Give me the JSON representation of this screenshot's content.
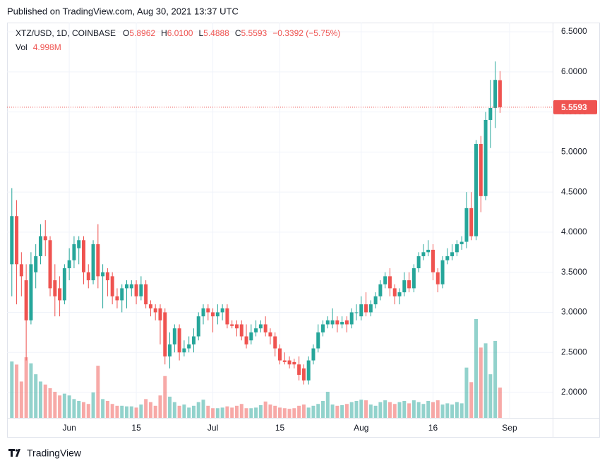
{
  "header": "Published on TradingView.com, Aug 30, 2021 13:37 UTC",
  "footer": "TradingView",
  "chart_data": {
    "type": "candlestick",
    "title": "XTZ/USD, 1D, COINBASE",
    "quote": [
      {
        "name": "O",
        "value": 5.8962
      },
      {
        "name": "H",
        "value": 6.01,
        "label": "6.0100"
      },
      {
        "name": "L",
        "value": 5.4888
      },
      {
        "name": "C",
        "value": 5.5593
      }
    ],
    "change": {
      "value": -0.3392,
      "label": "−0.3392 (−5.75%)"
    },
    "volume_name": "Vol",
    "volume_label": "4.998M",
    "up_color": "#26a69a",
    "down_color": "#ef5350",
    "x": [
      "2021-05-20",
      "2021-05-21",
      "2021-05-22",
      "2021-05-23",
      "2021-05-24",
      "2021-05-25",
      "2021-05-26",
      "2021-05-27",
      "2021-05-28",
      "2021-05-29",
      "2021-05-30",
      "2021-05-31",
      "2021-06-01",
      "2021-06-02",
      "2021-06-03",
      "2021-06-04",
      "2021-06-05",
      "2021-06-06",
      "2021-06-07",
      "2021-06-08",
      "2021-06-09",
      "2021-06-10",
      "2021-06-11",
      "2021-06-12",
      "2021-06-13",
      "2021-06-14",
      "2021-06-15",
      "2021-06-16",
      "2021-06-17",
      "2021-06-18",
      "2021-06-19",
      "2021-06-20",
      "2021-06-21",
      "2021-06-22",
      "2021-06-23",
      "2021-06-24",
      "2021-06-25",
      "2021-06-26",
      "2021-06-27",
      "2021-06-28",
      "2021-06-29",
      "2021-06-30",
      "2021-07-01",
      "2021-07-02",
      "2021-07-03",
      "2021-07-04",
      "2021-07-05",
      "2021-07-06",
      "2021-07-07",
      "2021-07-08",
      "2021-07-09",
      "2021-07-10",
      "2021-07-11",
      "2021-07-12",
      "2021-07-13",
      "2021-07-14",
      "2021-07-15",
      "2021-07-16",
      "2021-07-17",
      "2021-07-18",
      "2021-07-19",
      "2021-07-20",
      "2021-07-21",
      "2021-07-22",
      "2021-07-23",
      "2021-07-24",
      "2021-07-25",
      "2021-07-26",
      "2021-07-27",
      "2021-07-28",
      "2021-07-29",
      "2021-07-30",
      "2021-07-31",
      "2021-08-01",
      "2021-08-02",
      "2021-08-03",
      "2021-08-04",
      "2021-08-05",
      "2021-08-06",
      "2021-08-07",
      "2021-08-08",
      "2021-08-09",
      "2021-08-10",
      "2021-08-11",
      "2021-08-12",
      "2021-08-13",
      "2021-08-14",
      "2021-08-15",
      "2021-08-16",
      "2021-08-17",
      "2021-08-18",
      "2021-08-19",
      "2021-08-20",
      "2021-08-21",
      "2021-08-22",
      "2021-08-23",
      "2021-08-24",
      "2021-08-25",
      "2021-08-26",
      "2021-08-27",
      "2021-08-28",
      "2021-08-29",
      "2021-08-30"
    ],
    "open": [
      3.6,
      4.2,
      3.6,
      3.4,
      2.9,
      3.5,
      3.7,
      3.95,
      3.9,
      3.4,
      3.3,
      3.15,
      3.55,
      3.65,
      3.8,
      3.9,
      3.5,
      3.4,
      3.85,
      3.45,
      3.5,
      3.45,
      3.2,
      3.15,
      3.3,
      3.3,
      3.35,
      3.2,
      3.35,
      3.1,
      3.05,
      3.05,
      3.0,
      2.45,
      2.6,
      2.8,
      2.5,
      2.55,
      2.6,
      2.7,
      2.95,
      3.05,
      3.0,
      2.95,
      3.0,
      3.05,
      2.85,
      2.85,
      2.85,
      2.7,
      2.65,
      2.75,
      2.8,
      2.85,
      2.75,
      2.7,
      2.55,
      2.4,
      2.4,
      2.38,
      2.35,
      2.3,
      2.15,
      2.4,
      2.55,
      2.75,
      2.85,
      2.85,
      2.9,
      2.85,
      2.9,
      2.85,
      3.0,
      2.95,
      3.1,
      3.0,
      3.1,
      3.2,
      3.35,
      3.45,
      3.3,
      3.2,
      3.25,
      3.4,
      3.3,
      3.55,
      3.7,
      3.75,
      3.78,
      3.5,
      3.35,
      3.65,
      3.7,
      3.75,
      3.85,
      3.88,
      4.3,
      3.95,
      5.1,
      4.45,
      5.4,
      5.55,
      5.8962
    ],
    "high": [
      4.55,
      4.4,
      3.75,
      3.6,
      3.75,
      3.85,
      4.1,
      4.15,
      3.95,
      3.6,
      3.45,
      3.6,
      3.8,
      3.95,
      3.95,
      3.95,
      3.6,
      3.9,
      4.1,
      3.6,
      3.55,
      3.5,
      3.3,
      3.35,
      3.4,
      3.4,
      3.4,
      3.45,
      3.4,
      3.15,
      3.1,
      3.1,
      3.05,
      2.75,
      2.85,
      2.85,
      2.65,
      2.7,
      2.8,
      3.0,
      3.1,
      3.1,
      3.05,
      3.1,
      3.1,
      3.1,
      2.9,
      2.9,
      2.9,
      2.85,
      2.85,
      2.9,
      2.9,
      2.95,
      2.8,
      2.75,
      2.6,
      2.5,
      2.45,
      2.42,
      2.45,
      2.35,
      2.45,
      2.6,
      2.85,
      2.9,
      2.95,
      3.05,
      2.95,
      2.95,
      2.95,
      3.05,
      3.1,
      3.2,
      3.25,
      3.15,
      3.25,
      3.4,
      3.5,
      3.55,
      3.35,
      3.3,
      3.5,
      3.5,
      3.6,
      3.75,
      3.85,
      3.9,
      3.85,
      3.55,
      3.7,
      3.8,
      3.85,
      3.9,
      3.95,
      4.5,
      4.5,
      5.15,
      5.2,
      5.5,
      5.9,
      6.13,
      6.01
    ],
    "low": [
      3.2,
      3.1,
      3.2,
      2.4,
      2.85,
      3.3,
      3.6,
      3.7,
      3.2,
      2.95,
      2.95,
      3.1,
      3.4,
      3.55,
      3.6,
      3.35,
      3.3,
      3.35,
      3.3,
      3.05,
      3.2,
      3.1,
      3.05,
      3.0,
      3.05,
      3.2,
      3.1,
      3.15,
      3.05,
      2.95,
      2.9,
      2.6,
      2.35,
      2.3,
      2.5,
      2.4,
      2.45,
      2.5,
      2.5,
      2.65,
      2.85,
      2.9,
      2.75,
      2.85,
      2.9,
      2.8,
      2.8,
      2.7,
      2.65,
      2.55,
      2.6,
      2.7,
      2.75,
      2.7,
      2.6,
      2.45,
      2.35,
      2.35,
      2.3,
      2.3,
      2.15,
      2.1,
      2.1,
      2.35,
      2.5,
      2.7,
      2.8,
      2.8,
      2.75,
      2.8,
      2.75,
      2.8,
      2.9,
      2.9,
      2.95,
      2.95,
      3.05,
      3.15,
      3.3,
      3.2,
      3.1,
      3.1,
      3.2,
      3.25,
      3.25,
      3.5,
      3.65,
      3.7,
      3.4,
      3.25,
      3.3,
      3.6,
      3.65,
      3.7,
      3.78,
      3.8,
      3.9,
      3.9,
      4.25,
      4.4,
      5.05,
      5.3,
      5.4888
    ],
    "close": [
      4.2,
      3.6,
      3.45,
      2.9,
      3.6,
      3.7,
      3.95,
      3.9,
      3.3,
      3.2,
      3.15,
      3.55,
      3.65,
      3.85,
      3.9,
      3.5,
      3.4,
      3.85,
      3.45,
      3.5,
      3.4,
      3.2,
      3.15,
      3.3,
      3.35,
      3.35,
      3.2,
      3.35,
      3.1,
      3.05,
      3.0,
      2.9,
      2.45,
      2.6,
      2.8,
      2.5,
      2.55,
      2.6,
      2.7,
      2.95,
      3.05,
      3.0,
      2.95,
      3.0,
      3.05,
      2.85,
      2.83,
      2.8,
      2.7,
      2.6,
      2.75,
      2.8,
      2.85,
      2.75,
      2.7,
      2.55,
      2.4,
      2.38,
      2.35,
      2.35,
      2.22,
      2.15,
      2.4,
      2.55,
      2.75,
      2.85,
      2.9,
      2.9,
      2.85,
      2.88,
      2.85,
      3.0,
      3.0,
      3.1,
      3.0,
      3.1,
      3.2,
      3.35,
      3.45,
      3.3,
      3.2,
      3.25,
      3.4,
      3.3,
      3.55,
      3.7,
      3.75,
      3.78,
      3.5,
      3.35,
      3.65,
      3.7,
      3.75,
      3.85,
      3.88,
      4.3,
      3.95,
      5.1,
      4.45,
      5.4,
      5.55,
      5.9,
      5.5593
    ],
    "volume": [
      9.3,
      8.8,
      6.0,
      10.0,
      9.0,
      7.2,
      6.0,
      5.5,
      4.9,
      4.3,
      3.7,
      4.0,
      3.7,
      3.1,
      2.8,
      2.6,
      2.3,
      4.2,
      8.6,
      3.1,
      2.8,
      2.3,
      2.0,
      2.0,
      1.9,
      1.9,
      1.7,
      2.2,
      3.1,
      2.6,
      2.0,
      3.7,
      6.9,
      3.5,
      2.6,
      2.0,
      2.2,
      1.7,
      2.0,
      2.6,
      3.0,
      2.0,
      1.6,
      1.6,
      1.7,
      1.9,
      1.7,
      2.0,
      2.3,
      1.6,
      1.6,
      1.7,
      2.1,
      2.7,
      2.2,
      2.0,
      1.7,
      1.6,
      1.5,
      1.6,
      2.0,
      2.2,
      1.7,
      2.0,
      2.3,
      2.8,
      4.3,
      2.2,
      2.0,
      2.1,
      2.3,
      2.6,
      2.8,
      3.0,
      2.9,
      2.2,
      2.0,
      2.6,
      2.9,
      2.6,
      2.3,
      2.6,
      2.8,
      2.4,
      2.9,
      2.6,
      2.3,
      2.8,
      2.6,
      2.9,
      2.2,
      2.4,
      2.2,
      2.6,
      2.4,
      8.3,
      5.9,
      16.3,
      11.6,
      12.3,
      7.2,
      12.7,
      4.998
    ],
    "xlim": [
      "2021-05-19",
      "2021-09-10"
    ],
    "xticks": [
      {
        "value": "2021-06-01",
        "label": "Jun"
      },
      {
        "value": "2021-06-15",
        "label": "15"
      },
      {
        "value": "2021-07-01",
        "label": "Jul"
      },
      {
        "value": "2021-07-15",
        "label": "15"
      },
      {
        "value": "2021-08-01",
        "label": "Aug"
      },
      {
        "value": "2021-08-16",
        "label": "16"
      },
      {
        "value": "2021-09-01",
        "label": "Sep"
      }
    ],
    "ylim": [
      1.683,
      6.615
    ],
    "yticks": [
      {
        "value": 2.0,
        "label": "2.0000"
      },
      {
        "value": 2.5,
        "label": "2.5000"
      },
      {
        "value": 3.0,
        "label": "3.0000"
      },
      {
        "value": 3.5,
        "label": "3.5000"
      },
      {
        "value": 4.0,
        "label": "4.0000"
      },
      {
        "value": 4.5,
        "label": "4.5000"
      },
      {
        "value": 5.0,
        "label": "5.0000"
      },
      {
        "value": 5.5,
        "label": "5.5000"
      },
      {
        "value": 6.0,
        "label": "6.0000"
      },
      {
        "value": 6.5,
        "label": "6.5000"
      }
    ],
    "grid": true
  }
}
